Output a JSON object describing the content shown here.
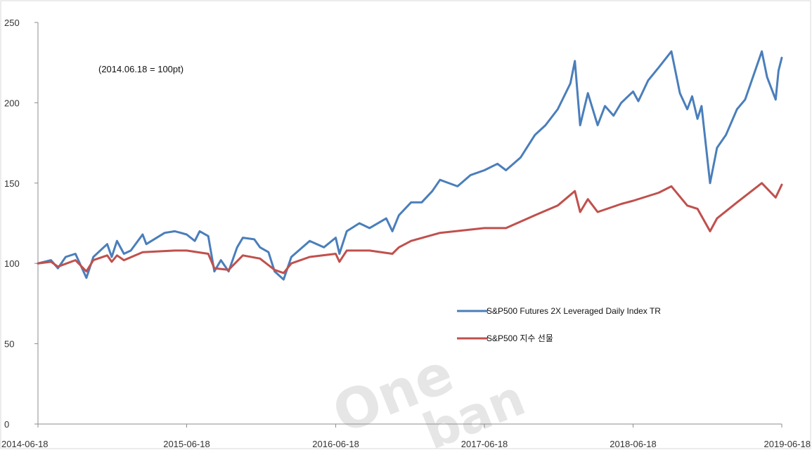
{
  "chart_data": {
    "type": "line",
    "annotation": "(2014.06.18 = 100pt)",
    "watermark": [
      "One",
      "ban"
    ],
    "y_ticks": [
      0,
      50,
      100,
      150,
      200,
      250
    ],
    "x_ticks": [
      "2014-06-18",
      "2015-06-18",
      "2016-06-18",
      "2017-06-18",
      "2018-06-18",
      "2019-06-18"
    ],
    "ylim": [
      0,
      250
    ],
    "xlim": [
      "2014-06-18",
      "2019-06-18"
    ],
    "legend_position": "right-center",
    "grid": false,
    "series": [
      {
        "name": "S&P500 Futures 2X Leveraged Daily Index TR",
        "color": "#4a7ebb",
        "points": [
          [
            "2014-06-18",
            100
          ],
          [
            "2014-07-20",
            102
          ],
          [
            "2014-08-06",
            97
          ],
          [
            "2014-08-25",
            104
          ],
          [
            "2014-09-18",
            106
          ],
          [
            "2014-10-15",
            91
          ],
          [
            "2014-11-01",
            104
          ],
          [
            "2014-12-05",
            112
          ],
          [
            "2014-12-16",
            104
          ],
          [
            "2014-12-29",
            114
          ],
          [
            "2015-01-15",
            106
          ],
          [
            "2015-02-01",
            108
          ],
          [
            "2015-03-02",
            118
          ],
          [
            "2015-03-11",
            112
          ],
          [
            "2015-04-25",
            119
          ],
          [
            "2015-05-20",
            120
          ],
          [
            "2015-06-18",
            118
          ],
          [
            "2015-07-08",
            114
          ],
          [
            "2015-07-20",
            120
          ],
          [
            "2015-08-10",
            117
          ],
          [
            "2015-08-25",
            95
          ],
          [
            "2015-09-10",
            102
          ],
          [
            "2015-09-29",
            95
          ],
          [
            "2015-10-20",
            110
          ],
          [
            "2015-11-03",
            116
          ],
          [
            "2015-12-01",
            115
          ],
          [
            "2015-12-15",
            110
          ],
          [
            "2016-01-05",
            107
          ],
          [
            "2016-01-20",
            95
          ],
          [
            "2016-02-11",
            90
          ],
          [
            "2016-03-01",
            104
          ],
          [
            "2016-04-15",
            114
          ],
          [
            "2016-05-20",
            110
          ],
          [
            "2016-06-18",
            116
          ],
          [
            "2016-06-27",
            106
          ],
          [
            "2016-07-15",
            120
          ],
          [
            "2016-08-15",
            125
          ],
          [
            "2016-09-09",
            122
          ],
          [
            "2016-10-20",
            128
          ],
          [
            "2016-11-04",
            120
          ],
          [
            "2016-11-20",
            130
          ],
          [
            "2016-12-20",
            138
          ],
          [
            "2017-01-15",
            138
          ],
          [
            "2017-02-10",
            145
          ],
          [
            "2017-03-01",
            152
          ],
          [
            "2017-04-13",
            148
          ],
          [
            "2017-05-15",
            155
          ],
          [
            "2017-06-18",
            158
          ],
          [
            "2017-07-20",
            162
          ],
          [
            "2017-08-10",
            158
          ],
          [
            "2017-09-15",
            166
          ],
          [
            "2017-10-20",
            180
          ],
          [
            "2017-11-15",
            186
          ],
          [
            "2017-12-15",
            196
          ],
          [
            "2018-01-15",
            212
          ],
          [
            "2018-01-26",
            226
          ],
          [
            "2018-02-08",
            186
          ],
          [
            "2018-02-27",
            206
          ],
          [
            "2018-03-23",
            186
          ],
          [
            "2018-04-10",
            198
          ],
          [
            "2018-05-01",
            192
          ],
          [
            "2018-05-20",
            200
          ],
          [
            "2018-06-18",
            207
          ],
          [
            "2018-07-01",
            201
          ],
          [
            "2018-07-25",
            214
          ],
          [
            "2018-08-20",
            222
          ],
          [
            "2018-09-20",
            232
          ],
          [
            "2018-10-11",
            206
          ],
          [
            "2018-10-29",
            196
          ],
          [
            "2018-11-10",
            204
          ],
          [
            "2018-11-23",
            190
          ],
          [
            "2018-12-03",
            198
          ],
          [
            "2018-12-24",
            150
          ],
          [
            "2019-01-10",
            172
          ],
          [
            "2019-02-01",
            180
          ],
          [
            "2019-02-28",
            196
          ],
          [
            "2019-03-20",
            202
          ],
          [
            "2019-04-30",
            232
          ],
          [
            "2019-05-13",
            216
          ],
          [
            "2019-06-03",
            202
          ],
          [
            "2019-06-10",
            220
          ],
          [
            "2019-06-18",
            228
          ]
        ]
      },
      {
        "name": "S&P500 지수 선물",
        "color": "#c0504d",
        "points": [
          [
            "2014-06-18",
            100
          ],
          [
            "2014-07-20",
            101
          ],
          [
            "2014-08-06",
            98
          ],
          [
            "2014-09-18",
            102
          ],
          [
            "2014-10-15",
            95
          ],
          [
            "2014-11-01",
            102
          ],
          [
            "2014-12-05",
            105
          ],
          [
            "2014-12-16",
            101
          ],
          [
            "2014-12-29",
            105
          ],
          [
            "2015-01-15",
            102
          ],
          [
            "2015-03-02",
            107
          ],
          [
            "2015-05-20",
            108
          ],
          [
            "2015-06-18",
            108
          ],
          [
            "2015-08-10",
            106
          ],
          [
            "2015-08-25",
            97
          ],
          [
            "2015-09-29",
            96
          ],
          [
            "2015-11-03",
            105
          ],
          [
            "2015-12-15",
            103
          ],
          [
            "2016-01-20",
            96
          ],
          [
            "2016-02-11",
            94
          ],
          [
            "2016-03-01",
            100
          ],
          [
            "2016-04-15",
            104
          ],
          [
            "2016-06-18",
            106
          ],
          [
            "2016-06-27",
            101
          ],
          [
            "2016-07-15",
            108
          ],
          [
            "2016-09-09",
            108
          ],
          [
            "2016-11-04",
            106
          ],
          [
            "2016-11-20",
            110
          ],
          [
            "2016-12-20",
            114
          ],
          [
            "2017-03-01",
            119
          ],
          [
            "2017-06-18",
            122
          ],
          [
            "2017-08-10",
            122
          ],
          [
            "2017-10-20",
            130
          ],
          [
            "2017-12-15",
            136
          ],
          [
            "2018-01-26",
            145
          ],
          [
            "2018-02-08",
            132
          ],
          [
            "2018-02-27",
            140
          ],
          [
            "2018-03-23",
            132
          ],
          [
            "2018-05-20",
            137
          ],
          [
            "2018-06-18",
            139
          ],
          [
            "2018-08-20",
            144
          ],
          [
            "2018-09-20",
            148
          ],
          [
            "2018-10-29",
            136
          ],
          [
            "2018-11-23",
            134
          ],
          [
            "2018-12-24",
            120
          ],
          [
            "2019-01-10",
            128
          ],
          [
            "2019-02-28",
            138
          ],
          [
            "2019-04-30",
            150
          ],
          [
            "2019-06-03",
            141
          ],
          [
            "2019-06-18",
            149
          ]
        ]
      }
    ]
  }
}
